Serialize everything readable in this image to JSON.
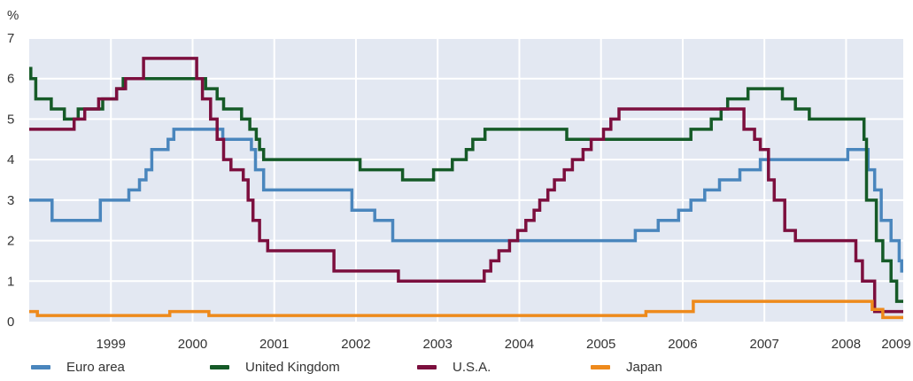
{
  "chart_data": {
    "type": "line",
    "ylabel": "%",
    "ylim": [
      0,
      7
    ],
    "yticks": [
      "0",
      "1",
      "2",
      "3",
      "4",
      "5",
      "6",
      "7"
    ],
    "xlim": [
      1998.5,
      2009.2
    ],
    "xticks": [
      "1999",
      "2000",
      "2001",
      "2002",
      "2003",
      "2004",
      "2005",
      "2006",
      "2007",
      "2008",
      "2009"
    ],
    "grid": true,
    "step": true,
    "legend_position": "bottom",
    "series": [
      {
        "name": "Euro area",
        "color": "#4a86bd",
        "points": [
          [
            1998.5,
            3.0
          ],
          [
            1998.78,
            2.5
          ],
          [
            1999.35,
            2.5
          ],
          [
            1999.37,
            3.0
          ],
          [
            1999.65,
            3.0
          ],
          [
            1999.72,
            3.25
          ],
          [
            1999.85,
            3.5
          ],
          [
            1999.93,
            3.75
          ],
          [
            1999.98,
            3.75
          ],
          [
            2000.0,
            4.25
          ],
          [
            2000.2,
            4.5
          ],
          [
            2000.27,
            4.75
          ],
          [
            2000.85,
            4.75
          ],
          [
            2000.87,
            4.5
          ],
          [
            2001.2,
            4.5
          ],
          [
            2001.22,
            4.25
          ],
          [
            2001.27,
            3.75
          ],
          [
            2001.37,
            3.25
          ],
          [
            2002.43,
            3.25
          ],
          [
            2002.45,
            2.75
          ],
          [
            2002.73,
            2.5
          ],
          [
            2002.95,
            2.0
          ],
          [
            2005.9,
            2.0
          ],
          [
            2005.92,
            2.25
          ],
          [
            2006.2,
            2.5
          ],
          [
            2006.45,
            2.75
          ],
          [
            2006.6,
            3.0
          ],
          [
            2006.77,
            3.25
          ],
          [
            2006.95,
            3.5
          ],
          [
            2007.2,
            3.75
          ],
          [
            2007.45,
            4.0
          ],
          [
            2008.0,
            4.0
          ],
          [
            2008.45,
            4.0
          ],
          [
            2008.52,
            4.25
          ],
          [
            2008.75,
            4.25
          ],
          [
            2008.77,
            3.75
          ],
          [
            2008.85,
            3.25
          ],
          [
            2008.93,
            2.5
          ],
          [
            2009.05,
            2.0
          ],
          [
            2009.15,
            1.5
          ],
          [
            2009.18,
            1.25
          ],
          [
            2009.2,
            1.25
          ]
        ]
      },
      {
        "name": "United Kingdom",
        "color": "#155a27",
        "points": [
          [
            1998.5,
            6.25
          ],
          [
            1998.52,
            6.0
          ],
          [
            1998.58,
            5.5
          ],
          [
            1998.77,
            5.25
          ],
          [
            1998.93,
            5.0
          ],
          [
            1999.07,
            5.0
          ],
          [
            1999.1,
            5.25
          ],
          [
            1999.4,
            5.5
          ],
          [
            1999.57,
            5.75
          ],
          [
            1999.65,
            6.0
          ],
          [
            2000.27,
            6.0
          ],
          [
            2000.5,
            6.0
          ],
          [
            2000.6,
            6.0
          ],
          [
            2000.66,
            5.75
          ],
          [
            2000.8,
            5.5
          ],
          [
            2000.88,
            5.25
          ],
          [
            2001.1,
            5.0
          ],
          [
            2001.2,
            4.75
          ],
          [
            2001.28,
            4.5
          ],
          [
            2001.32,
            4.25
          ],
          [
            2001.37,
            4.0
          ],
          [
            2002.52,
            4.0
          ],
          [
            2002.55,
            3.75
          ],
          [
            2002.95,
            3.75
          ],
          [
            2003.07,
            3.5
          ],
          [
            2003.4,
            3.5
          ],
          [
            2003.45,
            3.75
          ],
          [
            2003.68,
            4.0
          ],
          [
            2003.85,
            4.25
          ],
          [
            2003.93,
            4.5
          ],
          [
            2004.08,
            4.75
          ],
          [
            2005.05,
            4.75
          ],
          [
            2005.08,
            4.5
          ],
          [
            2006.45,
            4.5
          ],
          [
            2006.6,
            4.75
          ],
          [
            2006.85,
            5.0
          ],
          [
            2006.97,
            5.25
          ],
          [
            2007.05,
            5.5
          ],
          [
            2007.3,
            5.75
          ],
          [
            2007.68,
            5.75
          ],
          [
            2007.72,
            5.5
          ],
          [
            2007.88,
            5.25
          ],
          [
            2008.05,
            5.0
          ],
          [
            2008.6,
            5.0
          ],
          [
            2008.72,
            4.5
          ],
          [
            2008.75,
            3.0
          ],
          [
            2008.87,
            2.0
          ],
          [
            2008.95,
            1.5
          ],
          [
            2009.05,
            1.0
          ],
          [
            2009.12,
            0.5
          ],
          [
            2009.2,
            0.5
          ]
        ]
      },
      {
        "name": "U.S.A.",
        "color": "#7c0f3e",
        "points": [
          [
            1998.5,
            4.75
          ],
          [
            1999.0,
            4.75
          ],
          [
            1999.05,
            5.0
          ],
          [
            1999.18,
            5.25
          ],
          [
            1999.35,
            5.5
          ],
          [
            1999.55,
            5.5
          ],
          [
            1999.57,
            5.75
          ],
          [
            1999.68,
            6.0
          ],
          [
            1999.85,
            6.0
          ],
          [
            1999.9,
            6.5
          ],
          [
            2000.5,
            6.5
          ],
          [
            2000.55,
            6.0
          ],
          [
            2000.62,
            5.5
          ],
          [
            2000.72,
            5.0
          ],
          [
            2000.8,
            4.5
          ],
          [
            2000.88,
            4.0
          ],
          [
            2000.97,
            3.75
          ],
          [
            2001.12,
            3.5
          ],
          [
            2001.18,
            3.0
          ],
          [
            2001.24,
            2.5
          ],
          [
            2001.32,
            2.0
          ],
          [
            2001.42,
            1.75
          ],
          [
            2002.2,
            1.75
          ],
          [
            2002.23,
            1.25
          ],
          [
            2002.5,
            1.25
          ],
          [
            2003.0,
            1.25
          ],
          [
            2003.02,
            1.0
          ],
          [
            2004.0,
            1.0
          ],
          [
            2004.07,
            1.25
          ],
          [
            2004.15,
            1.5
          ],
          [
            2004.25,
            1.75
          ],
          [
            2004.38,
            2.0
          ],
          [
            2004.48,
            2.25
          ],
          [
            2004.58,
            2.5
          ],
          [
            2004.68,
            2.75
          ],
          [
            2004.75,
            3.0
          ],
          [
            2004.85,
            3.25
          ],
          [
            2004.93,
            3.5
          ],
          [
            2005.05,
            3.75
          ],
          [
            2005.15,
            4.0
          ],
          [
            2005.28,
            4.25
          ],
          [
            2005.38,
            4.5
          ],
          [
            2005.53,
            4.75
          ],
          [
            2005.62,
            5.0
          ],
          [
            2005.72,
            5.25
          ],
          [
            2006.0,
            5.25
          ],
          [
            2007.15,
            5.25
          ],
          [
            2007.25,
            4.75
          ],
          [
            2007.38,
            4.5
          ],
          [
            2007.45,
            4.25
          ],
          [
            2007.55,
            3.5
          ],
          [
            2007.62,
            3.0
          ],
          [
            2007.68,
            3.0
          ],
          [
            2007.75,
            2.25
          ],
          [
            2007.88,
            2.0
          ],
          [
            2008.55,
            2.0
          ],
          [
            2008.62,
            1.5
          ],
          [
            2008.7,
            1.0
          ],
          [
            2008.85,
            0.25
          ],
          [
            2009.2,
            0.25
          ]
        ]
      },
      {
        "name": "Japan",
        "color": "#ee8a1c",
        "points": [
          [
            1998.5,
            0.25
          ],
          [
            1998.6,
            0.15
          ],
          [
            2000.17,
            0.15
          ],
          [
            2000.22,
            0.25
          ],
          [
            2000.65,
            0.25
          ],
          [
            2000.7,
            0.15
          ],
          [
            2006.0,
            0.15
          ],
          [
            2006.05,
            0.25
          ],
          [
            2006.6,
            0.25
          ],
          [
            2006.63,
            0.5
          ],
          [
            2008.8,
            0.5
          ],
          [
            2008.82,
            0.3
          ],
          [
            2008.95,
            0.1
          ],
          [
            2009.2,
            0.1
          ]
        ]
      }
    ]
  }
}
